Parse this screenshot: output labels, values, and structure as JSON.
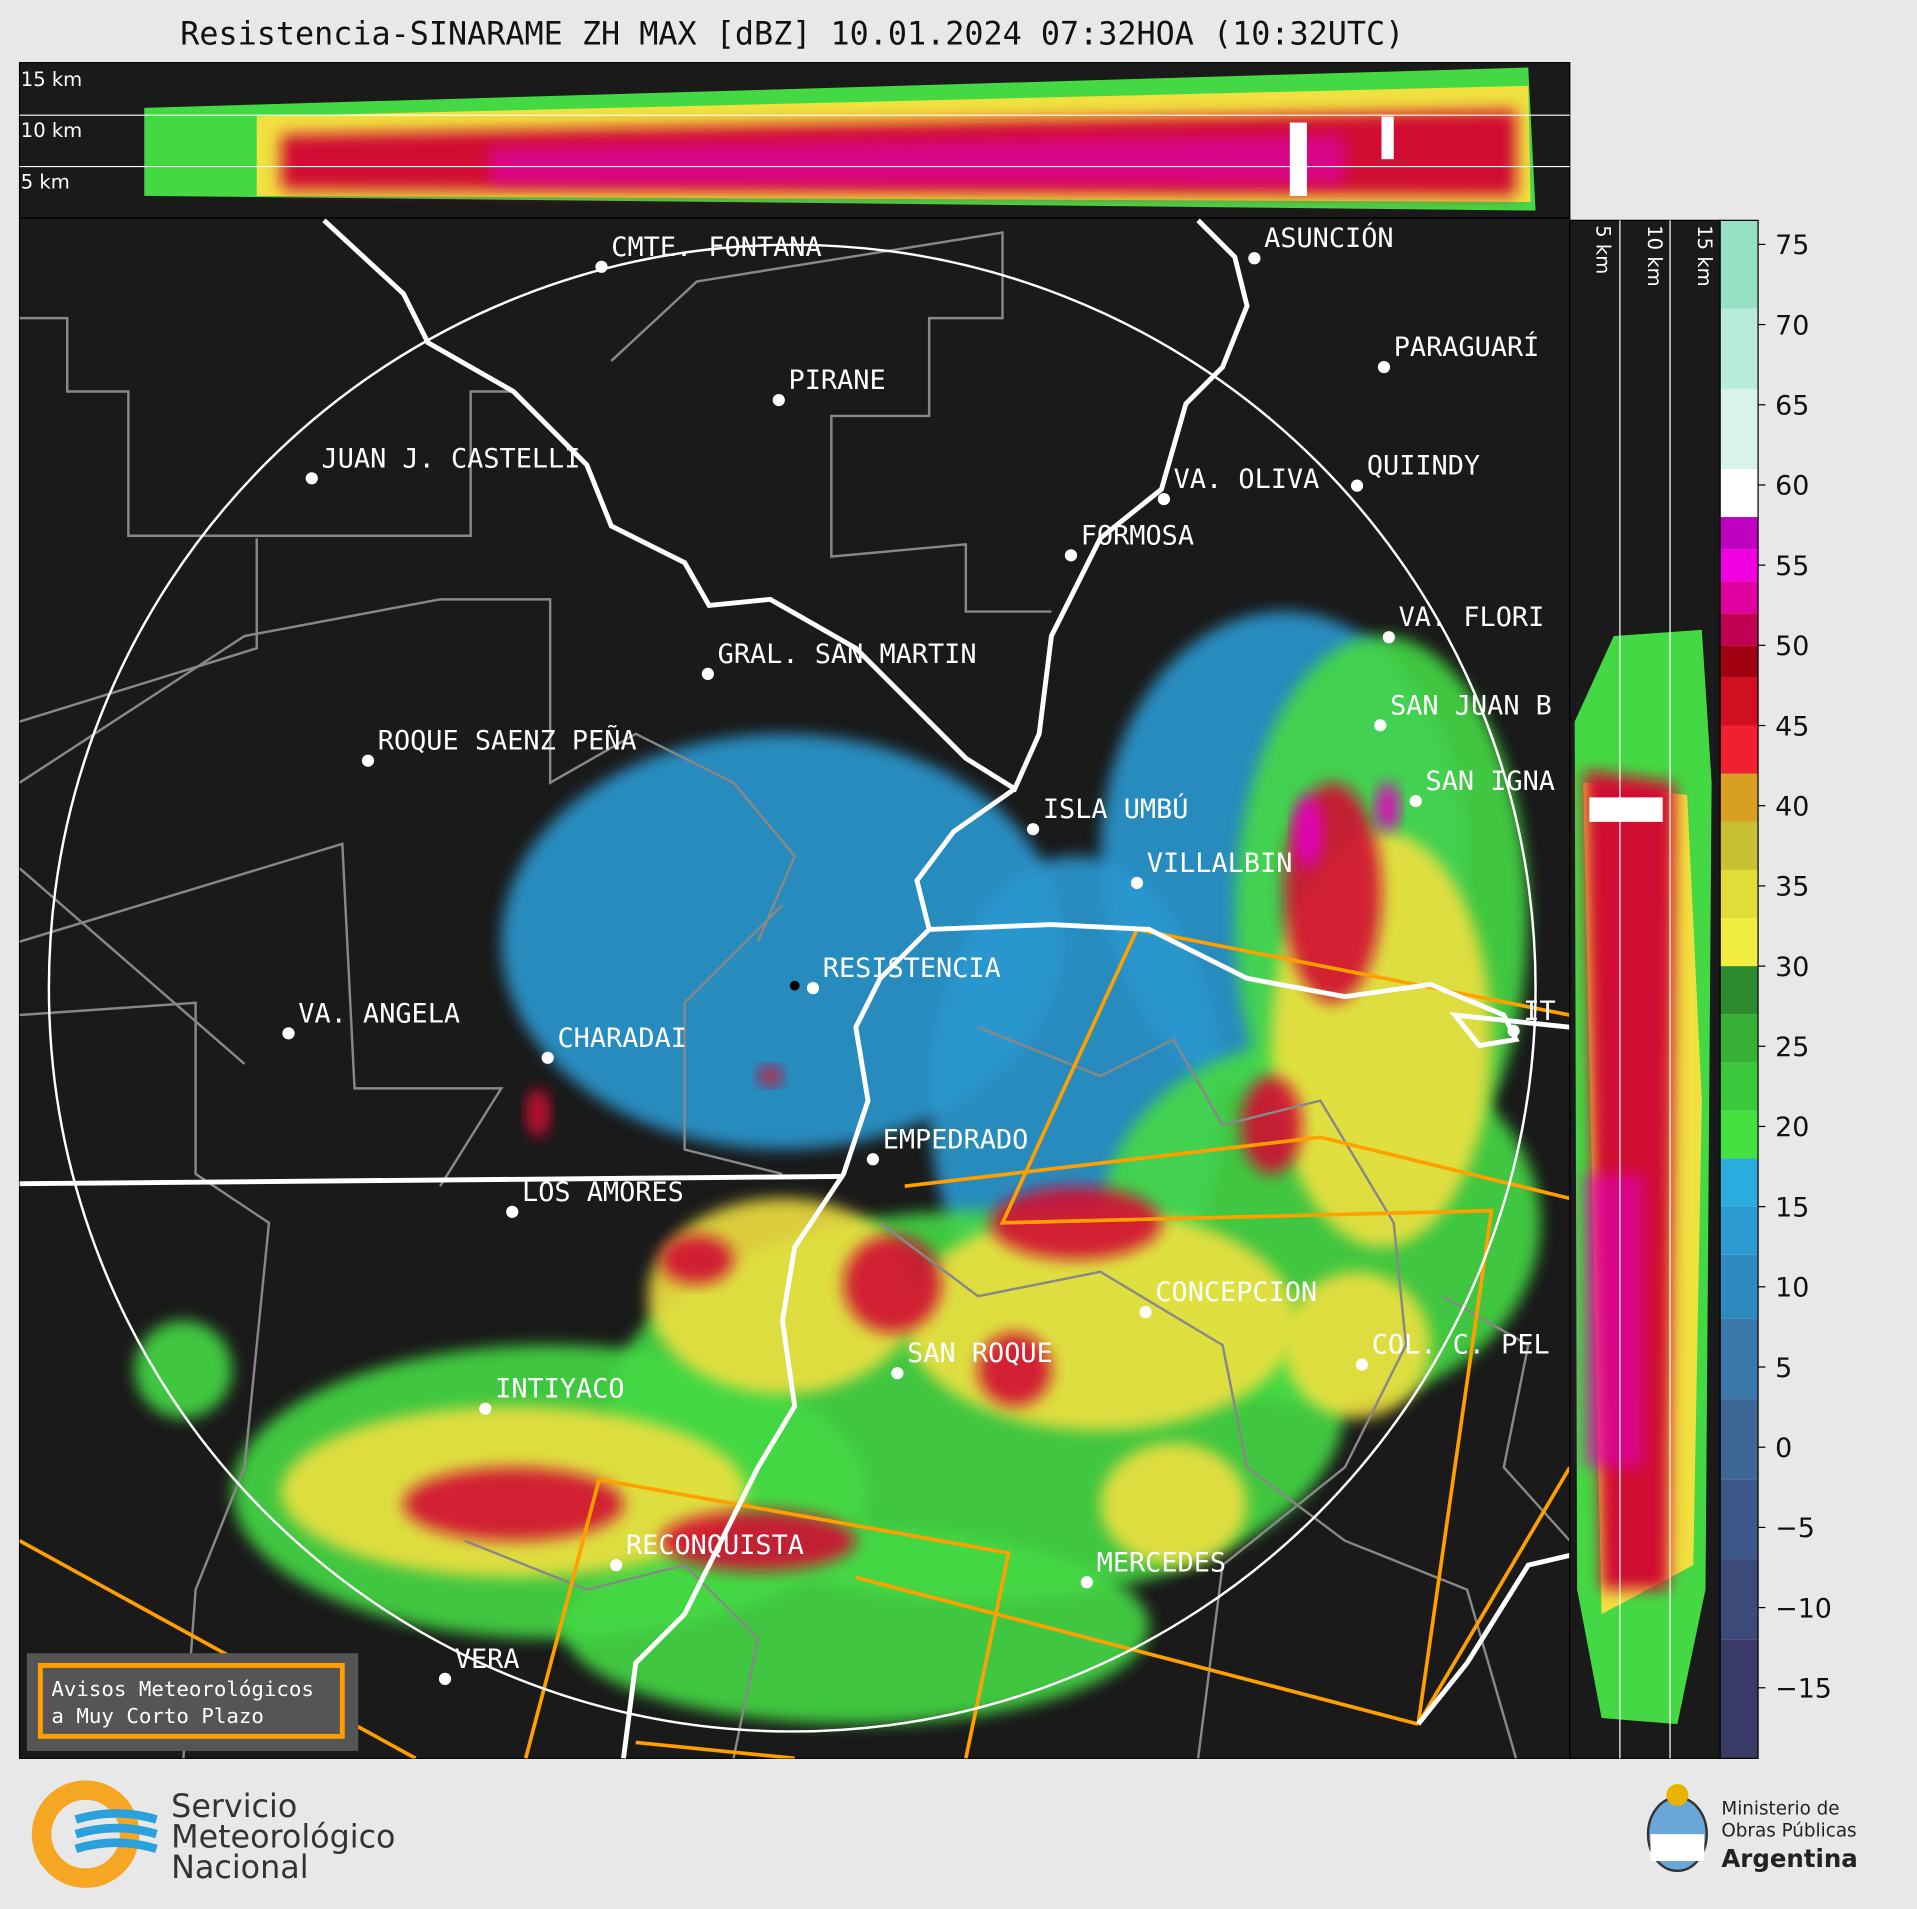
{
  "title": "Resistencia-SINARAME ZH MAX [dBZ] 10.01.2024 07:32HOA (10:32UTC)",
  "height_labels_top": [
    "15 km",
    "10 km",
    "5 km"
  ],
  "height_labels_side": [
    "5 km",
    "10 km",
    "15 km"
  ],
  "cities": [
    "CMTE. FONTANA",
    "PIRANE",
    "JUAN J. CASTELLI",
    "ASUNCIÓN",
    "PARAGUARÍ",
    "VA. OLIVA",
    "QUIINDY",
    "FORMOSA",
    "VA. FLORI",
    "GRAL. SAN MARTIN",
    "SAN JUAN B",
    "ROQUE SAENZ PEÑA",
    "SAN IGNA",
    "ISLA UMBÚ",
    "VILLALBIN",
    "RESISTENCIA",
    "VA. ANGELA",
    "IT",
    "CHARADAI",
    "EMPEDRADO",
    "LOS AMORES",
    "CONCEPCION",
    "COL. C. PEL",
    "SAN ROQUE",
    "INTIYACO",
    "RECONQUISTA",
    "MERCEDES",
    "VERA"
  ],
  "colorbar": {
    "lim": [
      -19.4,
      76.5
    ],
    "ticks": [
      75,
      70,
      65,
      60,
      55,
      50,
      45,
      40,
      35,
      30,
      25,
      20,
      15,
      10,
      5,
      0,
      {
        "value": -5,
        "label": "−5"
      },
      {
        "value": -10,
        "label": "−10"
      },
      {
        "value": -15,
        "label": "−15"
      }
    ]
  },
  "warning_box": [
    "Avisos Meteorológicos",
    "a Muy Corto Plazo"
  ],
  "logo": [
    "Servicio",
    "Meteorológico",
    "Nacional"
  ],
  "ministry": [
    "Ministerio de",
    "Obras Públicas",
    "Argentina"
  ]
}
